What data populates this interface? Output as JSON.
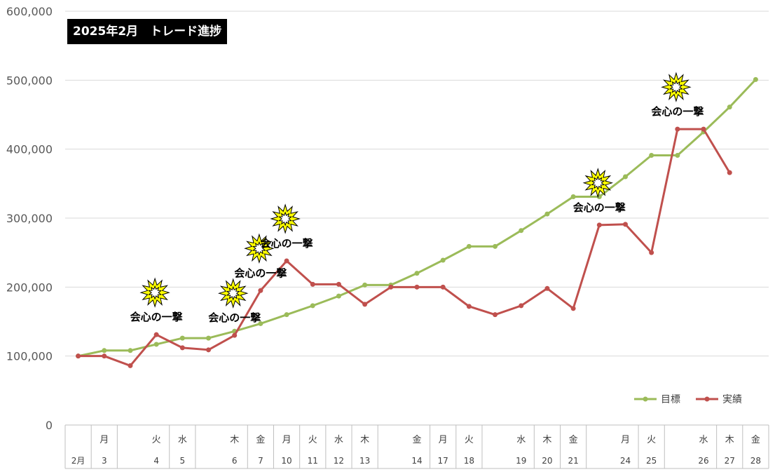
{
  "chart_data": {
    "type": "line",
    "title": "2025年2月　トレード進捗",
    "ylim": [
      0,
      600000
    ],
    "yticks": [
      "0",
      "100,000",
      "200,000",
      "300,000",
      "400,000",
      "500,000",
      "600,000"
    ],
    "grid": true,
    "legend_position": "bottom-right",
    "x_categories": [
      {
        "weekday": "",
        "date": "2月"
      },
      {
        "weekday": "月",
        "date": "3"
      },
      {
        "weekday": "",
        "date": ""
      },
      {
        "weekday": "火",
        "date": "4"
      },
      {
        "weekday": "水",
        "date": "5"
      },
      {
        "weekday": "",
        "date": ""
      },
      {
        "weekday": "木",
        "date": "6"
      },
      {
        "weekday": "金",
        "date": "7"
      },
      {
        "weekday": "月",
        "date": "10"
      },
      {
        "weekday": "火",
        "date": "11"
      },
      {
        "weekday": "水",
        "date": "12"
      },
      {
        "weekday": "木",
        "date": "13"
      },
      {
        "weekday": "",
        "date": ""
      },
      {
        "weekday": "金",
        "date": "14"
      },
      {
        "weekday": "月",
        "date": "17"
      },
      {
        "weekday": "火",
        "date": "18"
      },
      {
        "weekday": "",
        "date": ""
      },
      {
        "weekday": "水",
        "date": "19"
      },
      {
        "weekday": "木",
        "date": "20"
      },
      {
        "weekday": "金",
        "date": "21"
      },
      {
        "weekday": "",
        "date": ""
      },
      {
        "weekday": "月",
        "date": "24"
      },
      {
        "weekday": "火",
        "date": "25"
      },
      {
        "weekday": "",
        "date": ""
      },
      {
        "weekday": "水",
        "date": "26"
      },
      {
        "weekday": "木",
        "date": "27"
      },
      {
        "weekday": "金",
        "date": "28"
      }
    ],
    "series": [
      {
        "name": "目標",
        "color": "#9bbb59",
        "values": [
          100000,
          108000,
          108000,
          117000,
          126000,
          126000,
          136000,
          147000,
          160000,
          173000,
          187000,
          203000,
          203000,
          220000,
          239000,
          259000,
          259000,
          282000,
          306000,
          331000,
          331000,
          360000,
          391000,
          391000,
          425000,
          461000,
          501000
        ]
      },
      {
        "name": "実績",
        "color": "#c0504d",
        "values": [
          100000,
          100000,
          86000,
          131000,
          112000,
          109000,
          130000,
          195000,
          238000,
          204000,
          204000,
          175000,
          200000,
          200000,
          200000,
          172000,
          160000,
          173000,
          198000,
          169000,
          290000,
          291000,
          250000,
          429000,
          429000,
          366000,
          null
        ]
      }
    ],
    "annotations": [
      {
        "text": "会心の一撃",
        "index": 3,
        "value": 131000
      },
      {
        "text": "会心の一撃",
        "index": 6,
        "value": 130000
      },
      {
        "text": "会心の一撃",
        "index": 7,
        "value": 195000
      },
      {
        "text": "会心の一撃",
        "index": 8,
        "value": 238000
      },
      {
        "text": "会心の一撃",
        "index": 20,
        "value": 290000
      },
      {
        "text": "会心の一撃",
        "index": 23,
        "value": 429000
      }
    ]
  }
}
